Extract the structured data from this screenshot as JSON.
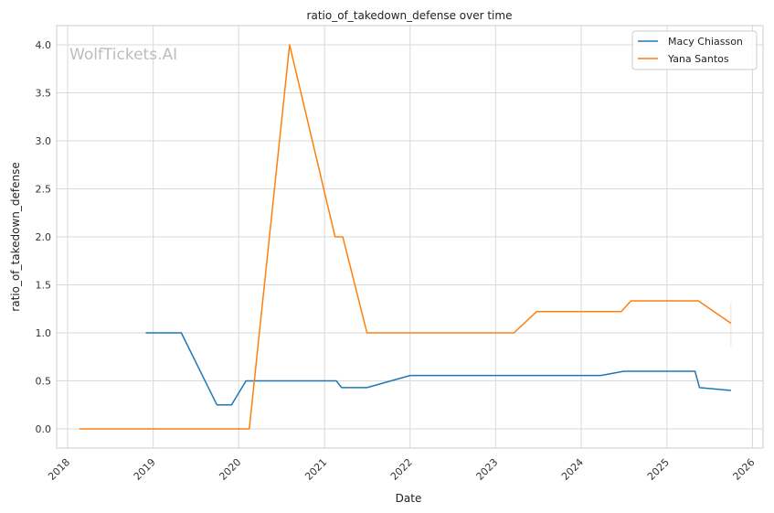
{
  "chart_data": {
    "type": "line",
    "title": "ratio_of_takedown_defense over time",
    "xlabel": "Date",
    "ylabel": "ratio_of_takedown_defense",
    "watermark": "WolfTickets.AI",
    "xlim": [
      "2017-11-15",
      "2026-02-15"
    ],
    "ylim": [
      -0.2,
      4.2
    ],
    "x_ticks": [
      "2018",
      "2019",
      "2020",
      "2021",
      "2022",
      "2023",
      "2024",
      "2025",
      "2026"
    ],
    "y_ticks": [
      "0.0",
      "0.5",
      "1.0",
      "1.5",
      "2.0",
      "2.5",
      "3.0",
      "3.5",
      "4.0"
    ],
    "grid": true,
    "legend_position": "top-right",
    "colors": {
      "series_1": "#1f77b4",
      "series_2": "#ff7f0e",
      "grid": "#d9d9d9",
      "spine": "#cccccc"
    },
    "series": [
      {
        "name": "Macy Chiasson",
        "color": "#1f77b4",
        "points": [
          [
            "2018-11-30",
            1.0
          ],
          [
            "2019-05-01",
            1.0
          ],
          [
            "2019-09-30",
            0.25
          ],
          [
            "2019-12-01",
            0.25
          ],
          [
            "2020-02-01",
            0.5
          ],
          [
            "2021-02-20",
            0.5
          ],
          [
            "2021-03-15",
            0.43
          ],
          [
            "2021-07-01",
            0.43
          ],
          [
            "2022-01-01",
            0.556
          ],
          [
            "2024-03-25",
            0.556
          ],
          [
            "2024-07-01",
            0.6
          ],
          [
            "2025-05-01",
            0.6
          ],
          [
            "2025-05-20",
            0.43
          ],
          [
            "2025-10-01",
            0.4
          ]
        ]
      },
      {
        "name": "Yana Santos",
        "color": "#ff7f0e",
        "points": [
          [
            "2018-02-20",
            0.0
          ],
          [
            "2020-02-15",
            0.0
          ],
          [
            "2020-08-05",
            4.0
          ],
          [
            "2021-02-15",
            2.0
          ],
          [
            "2021-03-20",
            2.0
          ],
          [
            "2021-07-01",
            1.0
          ],
          [
            "2023-03-20",
            1.0
          ],
          [
            "2023-06-25",
            1.222
          ],
          [
            "2024-06-20",
            1.222
          ],
          [
            "2024-08-01",
            1.333
          ],
          [
            "2025-05-15",
            1.333
          ],
          [
            "2025-10-01",
            1.1
          ]
        ]
      }
    ]
  }
}
